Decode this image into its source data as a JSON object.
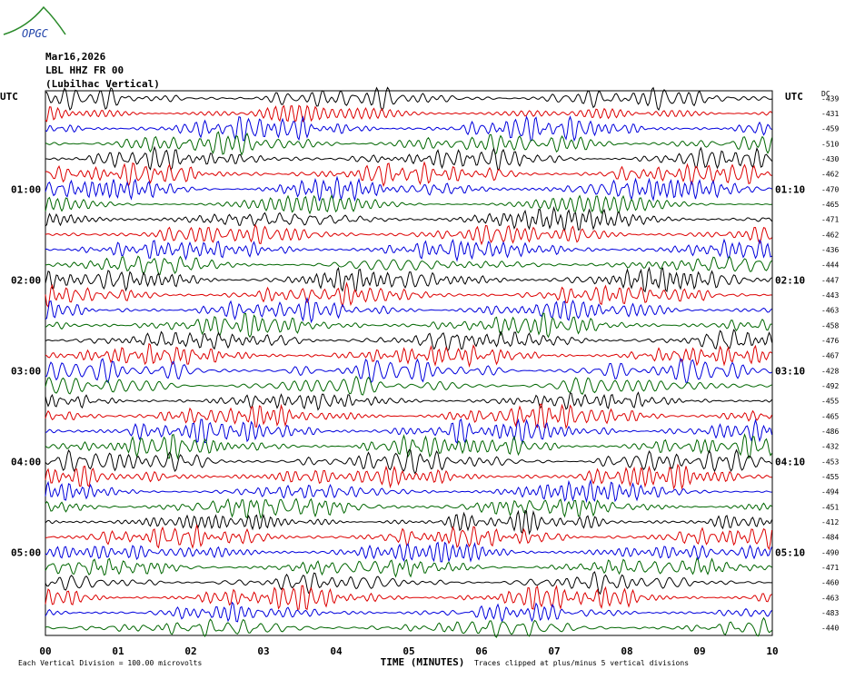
{
  "logo": "OPGC",
  "header": {
    "date": "Mar16,2026",
    "station": "LBL HHZ FR 00",
    "location": "(Lubilhac Vertical)"
  },
  "left_axis": {
    "unit": "UTC",
    "labels": [
      "01:00",
      "02:00",
      "03:00",
      "04:00",
      "05:00"
    ]
  },
  "right_axis": {
    "unit": "UTC",
    "labels": [
      "01:10",
      "02:10",
      "03:10",
      "04:10",
      "05:10"
    ],
    "offset_title": "DC",
    "offsets": [
      "-439",
      "-431",
      "-459",
      "-510",
      "-430",
      "-462",
      "-470",
      "-465",
      "-471",
      "-462",
      "-436",
      "-444",
      "-447",
      "-443",
      "-463",
      "-458",
      "-476",
      "-467",
      "-428",
      "-492",
      "-455",
      "-465",
      "-486",
      "-432",
      "-453",
      "-455",
      "-494",
      "-451",
      "-412",
      "-484",
      "-490",
      "-471",
      "-460",
      "-463",
      "-483",
      "-440"
    ]
  },
  "x_axis": {
    "ticks": [
      "00",
      "01",
      "02",
      "03",
      "04",
      "05",
      "06",
      "07",
      "08",
      "09",
      "10"
    ],
    "title": "TIME (MINUTES)"
  },
  "footer": {
    "scale": "Each Vertical Division =  100.00 microvolts",
    "clip": "Traces clipped at plus/minus 5 vertical divisions"
  }
}
